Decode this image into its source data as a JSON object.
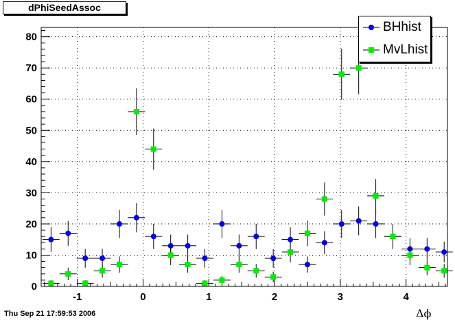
{
  "chart_data": {
    "type": "scatter",
    "title": "dPhiSeedAssoc",
    "xlabel": "Δϕ",
    "ylabel": "",
    "xlim": [
      -1.55,
      4.63
    ],
    "ylim": [
      0,
      83
    ],
    "grid": true,
    "legend_position": "top-right",
    "x_ticks": [
      -1,
      0,
      1,
      2,
      3,
      4
    ],
    "y_ticks": [
      0,
      10,
      20,
      30,
      40,
      50,
      60,
      70,
      80
    ],
    "x_tick_labels": [
      "-1",
      "0",
      "1",
      "2",
      "3",
      "4"
    ],
    "y_tick_labels": [
      "0",
      "10",
      "20",
      "30",
      "40",
      "50",
      "60",
      "70",
      "80"
    ],
    "bin_half_width": 0.13,
    "series": [
      {
        "name": "BHhist",
        "color": "#0000ee",
        "marker": "circle",
        "x": [
          -1.4,
          -1.14,
          -0.88,
          -0.62,
          -0.36,
          -0.1,
          0.16,
          0.42,
          0.68,
          0.94,
          1.2,
          1.46,
          1.72,
          1.98,
          2.24,
          2.5,
          2.76,
          3.02,
          3.28,
          3.54,
          3.8,
          4.06,
          4.32,
          4.58
        ],
        "y": [
          15,
          17,
          9,
          9,
          20,
          22,
          16,
          13,
          13,
          9,
          20,
          13,
          16,
          9,
          15,
          7,
          14,
          20,
          21,
          20,
          16,
          12,
          12,
          11
        ],
        "err": [
          4,
          4,
          3,
          3,
          4.5,
          4.7,
          4,
          3.6,
          3.6,
          3,
          4.5,
          3.6,
          4,
          3,
          3.9,
          2.6,
          3.7,
          4.5,
          4.6,
          4.5,
          4,
          3.5,
          3.5,
          3.3
        ]
      },
      {
        "name": "MvLhist",
        "color": "#00ee00",
        "marker": "square",
        "x": [
          -1.4,
          -1.14,
          -0.88,
          -0.62,
          -0.36,
          -0.1,
          0.16,
          0.42,
          0.68,
          0.94,
          1.2,
          1.46,
          1.72,
          1.98,
          2.24,
          2.5,
          2.76,
          3.02,
          3.28,
          3.54,
          3.8,
          4.06,
          4.32,
          4.58
        ],
        "y": [
          1,
          4,
          1,
          5,
          7,
          56,
          44,
          10,
          7,
          1,
          2,
          7,
          5,
          3,
          11,
          17,
          28,
          68,
          70,
          29,
          16,
          10,
          6,
          5
        ],
        "err": [
          1,
          2,
          1,
          2.2,
          2.6,
          7.5,
          6.6,
          3.2,
          2.6,
          1,
          1.4,
          2.6,
          2.2,
          1.7,
          3.3,
          4.1,
          5.3,
          8.2,
          8.4,
          5.4,
          4,
          3.2,
          2.4,
          2.2
        ]
      }
    ]
  },
  "footer": {
    "timestamp": "Thu Sep 21 17:59:53 2006"
  }
}
